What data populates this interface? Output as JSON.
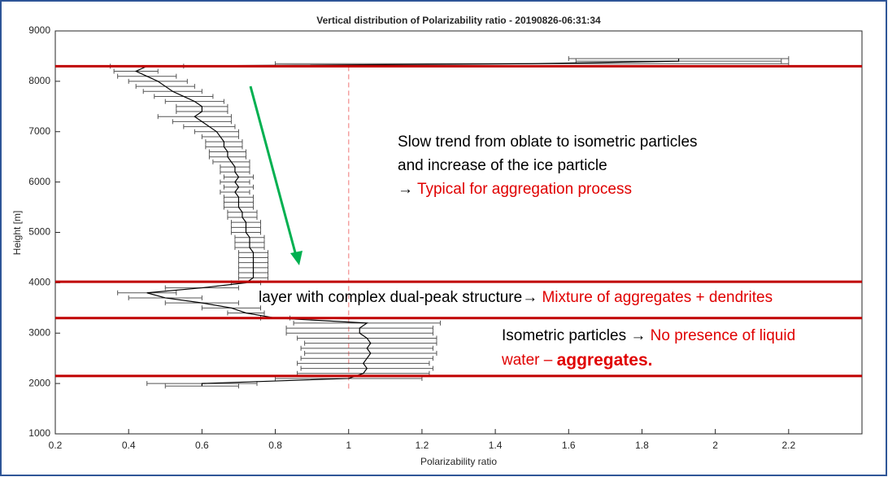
{
  "chart_data": {
    "type": "profile",
    "title": "Vertical distribution of Polarizability ratio - 20190826-06:31:34",
    "x_label": "Polarizability ratio",
    "y_label": "Height [m]",
    "xlim": [
      0.2,
      2.4
    ],
    "ylim": [
      1000,
      9000
    ],
    "xticks": [
      0.2,
      0.4,
      0.6,
      0.8,
      1,
      1.2,
      1.4,
      1.6,
      1.8,
      2,
      2.2
    ],
    "yticks": [
      1000,
      2000,
      3000,
      4000,
      5000,
      6000,
      7000,
      8000,
      9000
    ],
    "y": [
      8450,
      8400,
      8350,
      8300,
      8200,
      8100,
      8000,
      7900,
      7800,
      7700,
      7600,
      7500,
      7400,
      7300,
      7200,
      7100,
      7000,
      6900,
      6800,
      6700,
      6600,
      6500,
      6400,
      6300,
      6200,
      6100,
      6000,
      5900,
      5800,
      5700,
      5600,
      5500,
      5400,
      5300,
      5200,
      5100,
      5000,
      4900,
      4800,
      4700,
      4600,
      4500,
      4400,
      4300,
      4200,
      4100,
      4000,
      3900,
      3800,
      3700,
      3600,
      3500,
      3400,
      3300,
      3200,
      3100,
      3000,
      2900,
      2800,
      2700,
      2600,
      2500,
      2400,
      2300,
      2200,
      2100,
      2000,
      1950
    ],
    "x": [
      1.9,
      1.9,
      1.5,
      0.45,
      0.42,
      0.45,
      0.48,
      0.5,
      0.52,
      0.55,
      0.58,
      0.6,
      0.6,
      0.58,
      0.6,
      0.62,
      0.64,
      0.65,
      0.66,
      0.66,
      0.67,
      0.67,
      0.68,
      0.69,
      0.69,
      0.7,
      0.69,
      0.7,
      0.69,
      0.7,
      0.7,
      0.7,
      0.71,
      0.71,
      0.72,
      0.72,
      0.72,
      0.73,
      0.73,
      0.73,
      0.74,
      0.74,
      0.74,
      0.74,
      0.74,
      0.74,
      0.72,
      0.6,
      0.45,
      0.5,
      0.6,
      0.68,
      0.72,
      0.8,
      1.05,
      1.03,
      1.03,
      1.05,
      1.06,
      1.05,
      1.06,
      1.05,
      1.04,
      1.05,
      1.04,
      1.0,
      0.6,
      0.6
    ],
    "errors": [
      0.3,
      0.28,
      0.7,
      0.1,
      0.06,
      0.08,
      0.08,
      0.08,
      0.08,
      0.08,
      0.08,
      0.07,
      0.07,
      0.1,
      0.08,
      0.07,
      0.06,
      0.05,
      0.05,
      0.05,
      0.05,
      0.05,
      0.05,
      0.04,
      0.04,
      0.04,
      0.04,
      0.04,
      0.04,
      0.04,
      0.04,
      0.04,
      0.04,
      0.04,
      0.04,
      0.04,
      0.04,
      0.04,
      0.04,
      0.04,
      0.04,
      0.04,
      0.04,
      0.04,
      0.04,
      0.04,
      0.04,
      0.1,
      0.08,
      0.1,
      0.1,
      0.08,
      0.05,
      0.04,
      0.2,
      0.2,
      0.2,
      0.19,
      0.18,
      0.18,
      0.18,
      0.18,
      0.18,
      0.18,
      0.18,
      0.2,
      0.15,
      0.1
    ],
    "color": "#000000",
    "error_color": "#555555",
    "hlines": [
      8300,
      4020,
      3300,
      2150
    ],
    "hline_color": "#c00000",
    "vline": 1,
    "vline_color": "#f4a0a0",
    "annotations": {
      "line1": "Slow trend from oblate to isometric particles",
      "line2": "and increase of the ice particle",
      "line3a": "→",
      "line3b": "Typical for aggregation process",
      "line4a": "layer with complex dual-peak structure→",
      "line4b": "Mixture of aggregates + dendrites",
      "line5a": "Isometric particles →",
      "line5b": "No presence of liquid",
      "line6a": "water – ",
      "line6b": "aggregates."
    }
  }
}
